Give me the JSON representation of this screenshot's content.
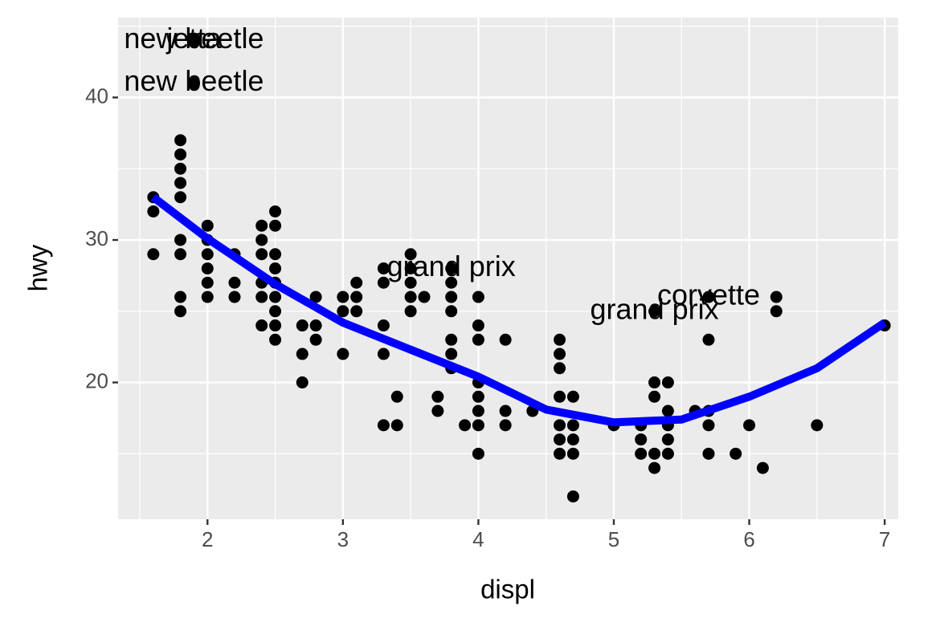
{
  "chart_data": {
    "type": "scatter",
    "x_label": "displ",
    "y_label": "hwy",
    "xlim": [
      1.34,
      7.1
    ],
    "ylim": [
      10.4,
      45.6
    ],
    "xticks": [
      2,
      3,
      4,
      5,
      6,
      7
    ],
    "yticks": [
      20,
      30,
      40
    ],
    "x_minor_grid": [
      1.5,
      2.5,
      3.5,
      4.5,
      5.5,
      6.5
    ],
    "y_minor_grid": [
      15,
      25,
      35,
      45
    ],
    "grid": true,
    "points": {
      "color": "#000000",
      "x": [
        1.6,
        1.6,
        1.6,
        1.8,
        1.8,
        1.8,
        1.8,
        1.8,
        1.8,
        1.8,
        1.8,
        1.8,
        1.9,
        1.9,
        2,
        2,
        2,
        2,
        2,
        2,
        2.2,
        2.2,
        2.2,
        2.4,
        2.4,
        2.4,
        2.4,
        2.4,
        2.4,
        2.5,
        2.5,
        2.5,
        2.5,
        2.5,
        2.5,
        2.5,
        2.5,
        2.5,
        2.7,
        2.7,
        2.7,
        2.8,
        2.8,
        2.8,
        3,
        3,
        3,
        3.1,
        3.1,
        3.1,
        3.3,
        3.3,
        3.3,
        3.3,
        3.3,
        3.4,
        3.4,
        3.5,
        3.5,
        3.5,
        3.5,
        3.5,
        3.6,
        3.7,
        3.7,
        3.8,
        3.8,
        3.8,
        3.8,
        3.8,
        3.8,
        3.8,
        3.9,
        4,
        4,
        4,
        4,
        4,
        4,
        4,
        4,
        4.2,
        4.2,
        4.2,
        4.4,
        4.6,
        4.6,
        4.6,
        4.6,
        4.6,
        4.6,
        4.6,
        4.7,
        4.7,
        4.7,
        4.7,
        4.7,
        5,
        5.2,
        5.2,
        5.2,
        5.3,
        5.3,
        5.3,
        5.3,
        5.3,
        5.4,
        5.4,
        5.4,
        5.4,
        5.4,
        5.6,
        5.7,
        5.7,
        5.7,
        5.7,
        5.7,
        5.9,
        6,
        6.1,
        6.2,
        6.2,
        6.5,
        7
      ],
      "y": [
        33,
        32,
        29,
        37,
        36,
        35,
        34,
        33,
        30,
        29,
        26,
        25,
        44,
        41,
        31,
        30,
        29,
        28,
        27,
        26,
        29,
        27,
        26,
        31,
        30,
        29,
        27,
        26,
        24,
        32,
        31,
        29,
        28,
        27,
        26,
        25,
        24,
        23,
        24,
        22,
        20,
        26,
        24,
        23,
        26,
        25,
        22,
        27,
        26,
        25,
        28,
        27,
        24,
        22,
        17,
        19,
        17,
        29,
        28,
        27,
        26,
        25,
        26,
        19,
        18,
        28,
        27,
        26,
        25,
        23,
        22,
        21,
        17,
        26,
        24,
        23,
        20,
        19,
        18,
        17,
        15,
        23,
        18,
        17,
        18,
        23,
        22,
        21,
        19,
        17,
        16,
        15,
        19,
        17,
        16,
        15,
        12,
        17,
        17,
        16,
        15,
        25,
        20,
        19,
        15,
        14,
        20,
        18,
        17,
        16,
        15,
        18,
        26,
        23,
        18,
        17,
        15,
        15,
        17,
        14,
        26,
        25,
        17,
        24
      ]
    },
    "smooth": {
      "color": "#0000ff",
      "x": [
        1.6,
        2,
        2.5,
        3,
        3.5,
        4,
        4.5,
        5,
        5.5,
        6,
        6.5,
        7
      ],
      "y": [
        33,
        30.1,
        26.9,
        24.2,
        22.3,
        20.4,
        18.1,
        17.2,
        17.4,
        19.0,
        21.0,
        24.2
      ]
    },
    "annotations": [
      {
        "text": "new beetle",
        "x": 1.9,
        "y": 44
      },
      {
        "text": "jetta",
        "x": 1.9,
        "y": 44
      },
      {
        "text": "new beetle",
        "x": 1.9,
        "y": 41
      },
      {
        "text": "grand prix",
        "x": 3.8,
        "y": 28
      },
      {
        "text": "grand prix",
        "x": 5.3,
        "y": 25
      },
      {
        "text": "corvette",
        "x": 5.7,
        "y": 26
      }
    ]
  }
}
